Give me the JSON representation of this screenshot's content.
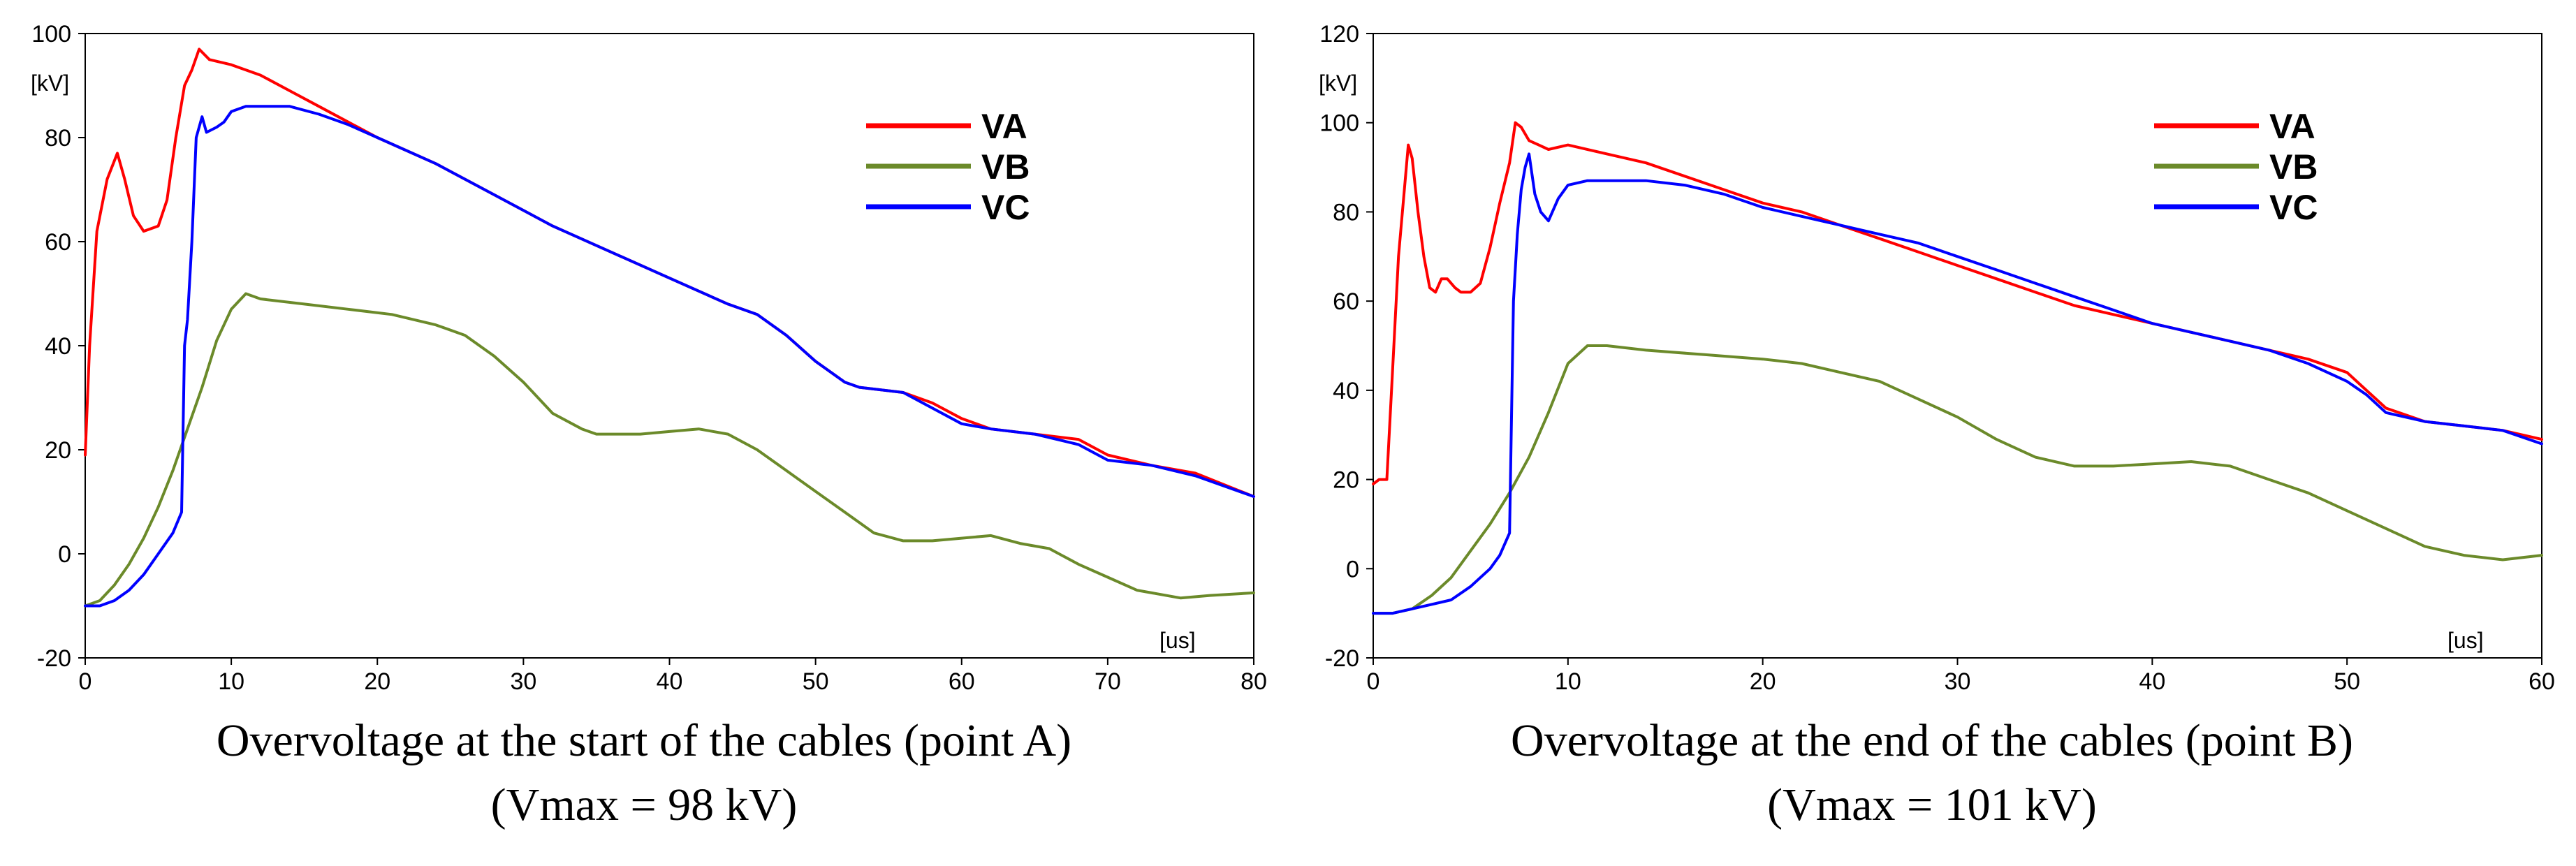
{
  "chart_data": [
    {
      "type": "line",
      "title": "Overvoltage at the start of the cables (point A)",
      "subtitle": "(Vmax = 98 kV)",
      "xlabel": "[us]",
      "ylabel": "[kV]",
      "xlim": [
        0,
        80
      ],
      "ylim": [
        -20,
        100
      ],
      "xticks": [
        0,
        10,
        20,
        30,
        40,
        50,
        60,
        70,
        80
      ],
      "yticks": [
        -20,
        0,
        20,
        40,
        60,
        80,
        100
      ],
      "legend": "top-right",
      "grid": false,
      "series": [
        {
          "name": "VA",
          "color": "#ff0000",
          "x": [
            0,
            0.3,
            0.8,
            1.5,
            2.2,
            2.7,
            3.3,
            4,
            5,
            5.6,
            6.2,
            6.8,
            7.3,
            7.8,
            8.5,
            10,
            12,
            14,
            16,
            18,
            20,
            24,
            28,
            32,
            36,
            40,
            44,
            46,
            48,
            50,
            52,
            53,
            56,
            58,
            60,
            62,
            65,
            68,
            70,
            73,
            76,
            80
          ],
          "y": [
            19,
            40,
            62,
            72,
            77,
            72,
            65,
            62,
            63,
            68,
            80,
            90,
            93,
            97,
            95,
            94,
            92,
            89,
            86,
            83,
            80,
            75,
            69,
            63,
            58,
            53,
            48,
            46,
            42,
            37,
            33,
            32,
            31,
            29,
            26,
            24,
            23,
            22,
            19,
            17,
            15.5,
            11
          ]
        },
        {
          "name": "VB",
          "color": "#6b8a2a",
          "x": [
            0,
            1,
            2,
            3,
            4,
            5,
            6,
            7,
            8,
            9,
            10,
            11,
            12,
            15,
            18,
            21,
            24,
            26,
            28,
            30,
            32,
            34,
            35,
            38,
            40,
            42,
            44,
            46,
            48,
            50,
            52,
            54,
            56,
            58,
            60,
            62,
            64,
            66,
            68,
            70,
            72,
            75,
            77,
            80
          ],
          "y": [
            -10,
            -9,
            -6,
            -2,
            3,
            9,
            16,
            24,
            32,
            41,
            47,
            50,
            49,
            48,
            47,
            46,
            44,
            42,
            38,
            33,
            27,
            24,
            23,
            23,
            23.5,
            24,
            23,
            20,
            16,
            12,
            8,
            4,
            2.5,
            2.5,
            3,
            3.5,
            2,
            1,
            -2,
            -4.5,
            -7,
            -8.5,
            -8,
            -7.5
          ]
        },
        {
          "name": "VC",
          "color": "#0000ff",
          "x": [
            0,
            1,
            2,
            3,
            4,
            5,
            6,
            6.6,
            6.8,
            7,
            7.3,
            7.6,
            8,
            8.3,
            9,
            9.5,
            10,
            11,
            12,
            14,
            16,
            18,
            20,
            24,
            28,
            32,
            36,
            40,
            44,
            46,
            48,
            50,
            52,
            53,
            56,
            58,
            60,
            62,
            65,
            68,
            70,
            73,
            76,
            80
          ],
          "y": [
            -10,
            -10,
            -9,
            -7,
            -4,
            0,
            4,
            8,
            40,
            45,
            60,
            80,
            84,
            81,
            82,
            83,
            85,
            86,
            86,
            86,
            84.5,
            82.5,
            80,
            75,
            69,
            63,
            58,
            53,
            48,
            46,
            42,
            37,
            33,
            32,
            31,
            28,
            25,
            24,
            23,
            21,
            18,
            17,
            15,
            11
          ]
        }
      ]
    },
    {
      "type": "line",
      "title": "Overvoltage at the end of the cables (point B)",
      "subtitle": "(Vmax = 101 kV)",
      "xlabel": "[us]",
      "ylabel": "[kV]",
      "xlim": [
        0,
        60
      ],
      "ylim": [
        -20,
        120
      ],
      "xticks": [
        0,
        10,
        20,
        30,
        40,
        50,
        60
      ],
      "yticks": [
        -20,
        0,
        20,
        40,
        60,
        80,
        100,
        120
      ],
      "legend": "top-right",
      "grid": false,
      "series": [
        {
          "name": "VA",
          "color": "#ff0000",
          "x": [
            0,
            0.3,
            0.7,
            1,
            1.3,
            1.6,
            1.8,
            2,
            2.3,
            2.6,
            2.9,
            3.2,
            3.5,
            3.8,
            4.2,
            4.5,
            5,
            5.5,
            6,
            6.5,
            7,
            7.3,
            7.6,
            8,
            8.5,
            9,
            10,
            12,
            14,
            16,
            18,
            20,
            22,
            24,
            26,
            28,
            30,
            32,
            34,
            36,
            38,
            40,
            42,
            44,
            46,
            48,
            50,
            51,
            52,
            54,
            56,
            58,
            60
          ],
          "y": [
            19,
            20,
            20,
            45,
            70,
            85,
            95,
            92,
            80,
            70,
            63,
            62,
            65,
            65,
            63,
            62,
            62,
            64,
            72,
            82,
            91,
            100,
            99,
            96,
            95,
            94,
            95,
            93,
            91,
            88,
            85,
            82,
            80,
            77,
            74,
            71,
            68,
            65,
            62,
            59,
            57,
            55,
            53,
            51,
            49,
            47,
            44,
            40,
            36,
            33,
            32,
            31,
            29
          ]
        },
        {
          "name": "VB",
          "color": "#6b8a2a",
          "x": [
            0,
            1,
            2,
            3,
            4,
            5,
            6,
            7,
            8,
            9,
            10,
            11,
            12,
            14,
            17,
            20,
            22,
            24,
            26,
            28,
            30,
            32,
            34,
            36,
            38,
            40,
            42,
            44,
            46,
            48,
            50,
            52,
            54,
            56,
            57,
            58,
            60
          ],
          "y": [
            -10,
            -10,
            -9,
            -6,
            -2,
            4,
            10,
            17,
            25,
            35,
            46,
            50,
            50,
            49,
            48,
            47,
            46,
            44,
            42,
            38,
            34,
            29,
            25,
            23,
            23,
            23.5,
            24,
            23,
            20,
            17,
            13,
            9,
            5,
            3,
            2.5,
            2,
            3
          ]
        },
        {
          "name": "VC",
          "color": "#0000ff",
          "x": [
            0,
            1,
            2,
            3,
            4,
            5,
            6,
            6.5,
            7,
            7.2,
            7.4,
            7.6,
            7.8,
            8,
            8.3,
            8.6,
            9,
            9.5,
            10,
            11,
            12,
            14,
            16,
            18,
            20,
            22,
            24,
            26,
            28,
            30,
            32,
            34,
            36,
            38,
            40,
            42,
            44,
            46,
            48,
            50,
            51,
            52,
            54,
            56,
            58,
            60
          ],
          "y": [
            -10,
            -10,
            -9,
            -8,
            -7,
            -4,
            0,
            3,
            8,
            60,
            75,
            85,
            90,
            93,
            84,
            80,
            78,
            83,
            86,
            87,
            87,
            87,
            86,
            84,
            81,
            79,
            77,
            75,
            73,
            70,
            67,
            64,
            61,
            58,
            55,
            53,
            51,
            49,
            46,
            42,
            39,
            35,
            33,
            32,
            31,
            28
          ]
        }
      ]
    }
  ]
}
